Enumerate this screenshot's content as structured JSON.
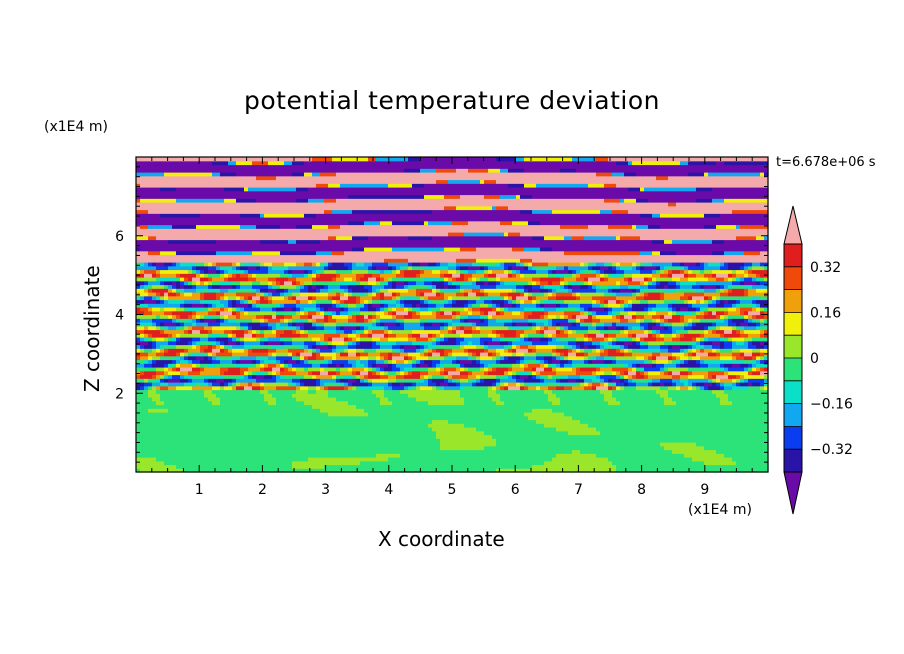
{
  "chart_data": {
    "type": "heatmap",
    "title": "potential temperature deviation",
    "xlabel": "X coordinate",
    "ylabel": "Z coordinate",
    "x_unit": "(x1E4 m)",
    "y_unit": "(x1E4 m)",
    "time_label": "t=6.678e+06 s",
    "xlim": [
      0,
      10
    ],
    "ylim": [
      0,
      8
    ],
    "x_ticks": [
      "1",
      "2",
      "3",
      "4",
      "5",
      "6",
      "7",
      "8",
      "9"
    ],
    "y_ticks": [
      "2",
      "4",
      "6"
    ],
    "colorbar": {
      "tick_labels": [
        "0.32",
        "0.16",
        "0",
        "−0.16",
        "−0.32"
      ],
      "tick_values": [
        0.32,
        0.16,
        0,
        -0.16,
        -0.32
      ],
      "levels": [
        -0.4,
        -0.32,
        -0.24,
        -0.16,
        -0.08,
        0,
        0.08,
        0.16,
        0.24,
        0.32,
        0.4
      ],
      "colors": [
        "#6a0aa8",
        "#2a14a8",
        "#0a3cf0",
        "#12a8f0",
        "#0ae0c8",
        "#2ce37a",
        "#9ae62a",
        "#f0f00a",
        "#f0a00a",
        "#f04a0a",
        "#e01e1e",
        "#f4aaaa"
      ],
      "over_color": "#f4aaaa",
      "under_color": "#6a0aa8"
    }
  }
}
